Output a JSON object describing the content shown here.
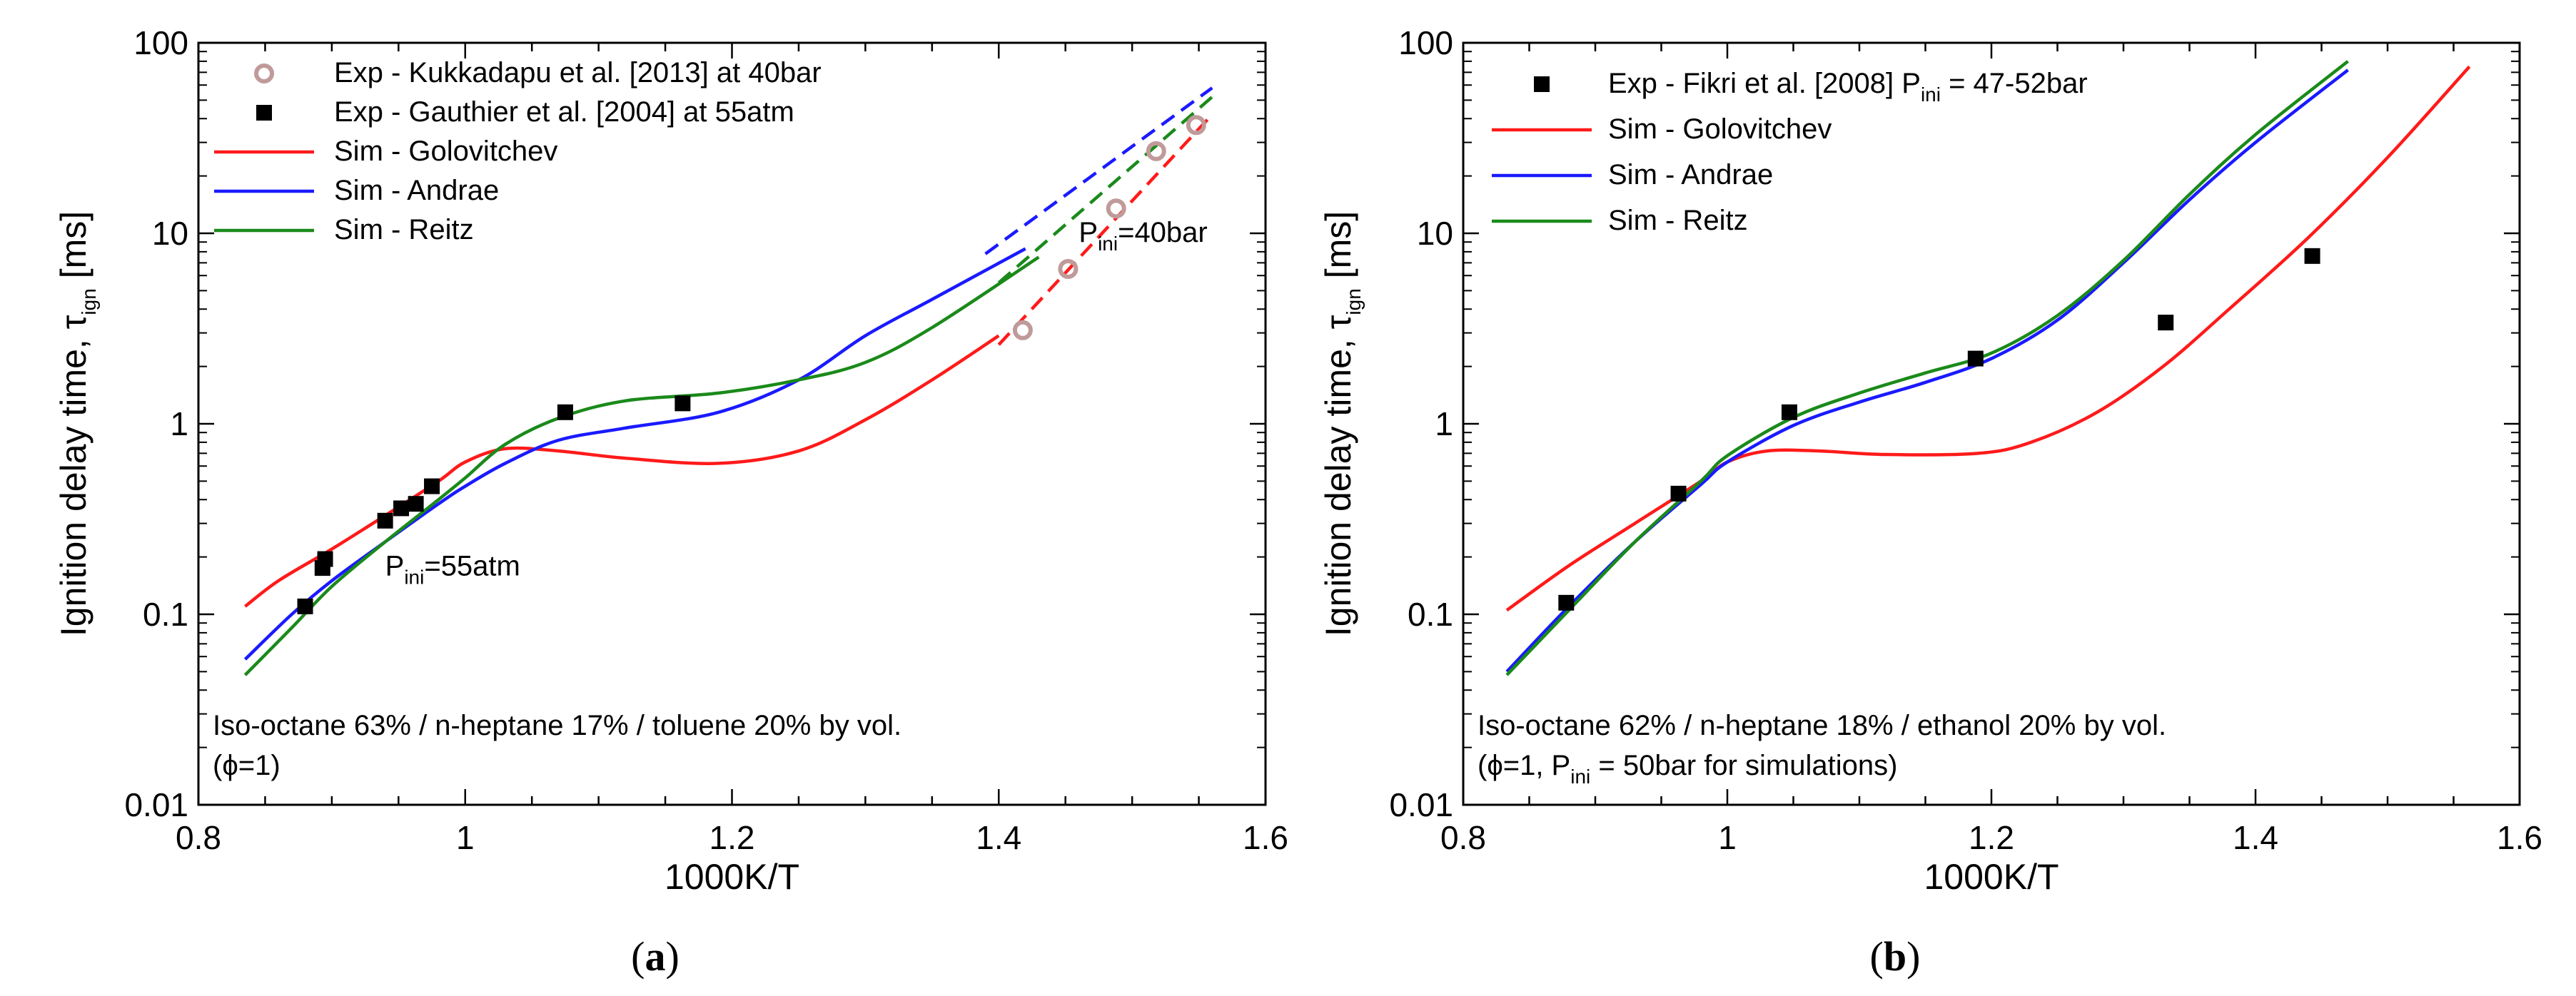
{
  "chart_data": [
    {
      "type": "line",
      "panel_label": "a",
      "xlabel": "1000K/T",
      "ylabel_main": "Ignition delay time, τ",
      "ylabel_sub": "ign",
      "ylabel_unit": " [ms]",
      "xlim": [
        0.8,
        1.6
      ],
      "ylim": [
        0.01,
        100
      ],
      "yscale": "log",
      "xticks": [
        0.8,
        1,
        1.2,
        1.4,
        1.6
      ],
      "xtick_labels": [
        "0.8",
        "1",
        "1.2",
        "1.4",
        "1.6"
      ],
      "yticks": [
        0.01,
        0.1,
        1,
        10,
        100
      ],
      "ytick_labels": [
        "0.01",
        "0.1",
        "1",
        "10",
        "100"
      ],
      "legend": {
        "position": "top-left",
        "entries": [
          {
            "label": "Exp - Kukkadapu et al. [2013] at 40bar",
            "marker": "open-circle",
            "color": "#c09a9a"
          },
          {
            "label": "Exp - Gauthier et al. [2004] at 55atm",
            "marker": "square",
            "color": "#000000"
          },
          {
            "label": "Sim - Golovitchev",
            "line": "solid",
            "color": "#ff1a1a"
          },
          {
            "label": "Sim - Andrae",
            "line": "solid",
            "color": "#1a1aff"
          },
          {
            "label": "Sim - Reitz",
            "line": "solid",
            "color": "#1a8a1a"
          }
        ]
      },
      "annotations": [
        {
          "main": "P",
          "sub": "ini",
          "rest": "=55atm",
          "x": 0.94,
          "y": 0.16
        },
        {
          "main": "P",
          "sub": "ini",
          "rest": "=40bar",
          "x": 1.46,
          "y": 9.0
        }
      ],
      "description_lines": [
        "Iso-octane 63% / n-heptane 17% / toluene 20% by vol.",
        "(ϕ=1)"
      ],
      "series": [
        {
          "name": "Sim - Golovitchev",
          "style": "solid",
          "color": "#ff1a1a",
          "x": [
            0.835,
            0.86,
            0.9,
            0.94,
            0.98,
            1.0,
            1.03,
            1.07,
            1.12,
            1.19,
            1.25,
            1.3,
            1.35,
            1.4
          ],
          "y": [
            0.11,
            0.15,
            0.22,
            0.33,
            0.5,
            0.63,
            0.74,
            0.72,
            0.66,
            0.62,
            0.72,
            1.05,
            1.7,
            2.9
          ]
        },
        {
          "name": "Sim - Andrae",
          "style": "solid",
          "color": "#1a1aff",
          "x": [
            0.835,
            0.87,
            0.9,
            0.94,
            0.98,
            1.0,
            1.03,
            1.07,
            1.12,
            1.19,
            1.25,
            1.3,
            1.35,
            1.42
          ],
          "y": [
            0.058,
            0.1,
            0.15,
            0.24,
            0.38,
            0.47,
            0.62,
            0.82,
            0.95,
            1.15,
            1.7,
            2.9,
            4.5,
            8.3
          ]
        },
        {
          "name": "Sim - Reitz",
          "style": "solid",
          "color": "#1a8a1a",
          "x": [
            0.835,
            0.87,
            0.9,
            0.94,
            0.98,
            1.0,
            1.03,
            1.07,
            1.12,
            1.19,
            1.25,
            1.3,
            1.35,
            1.43
          ],
          "y": [
            0.048,
            0.085,
            0.14,
            0.24,
            0.4,
            0.52,
            0.78,
            1.07,
            1.32,
            1.45,
            1.7,
            2.1,
            3.2,
            7.5
          ]
        },
        {
          "name": "Sim - Golovitchev (40bar)",
          "style": "dashed",
          "color": "#ff1a1a",
          "x": [
            1.4,
            1.56
          ],
          "y": [
            2.6,
            42
          ]
        },
        {
          "name": "Sim - Andrae (40bar)",
          "style": "dashed",
          "color": "#1a1aff",
          "x": [
            1.39,
            1.56
          ],
          "y": [
            7.8,
            58
          ]
        },
        {
          "name": "Sim - Reitz (40bar)",
          "style": "dashed",
          "color": "#1a8a1a",
          "x": [
            1.4,
            1.56
          ],
          "y": [
            5.5,
            52
          ]
        }
      ],
      "points": [
        {
          "name": "Exp - Gauthier et al. [2004] at 55atm",
          "marker": "square",
          "color": "#000000",
          "x": [
            0.88,
            0.893,
            0.895,
            0.94,
            0.952,
            0.963,
            0.975,
            1.075,
            1.163
          ],
          "y": [
            0.11,
            0.175,
            0.195,
            0.31,
            0.36,
            0.38,
            0.47,
            1.15,
            1.28
          ]
        },
        {
          "name": "Exp - Kukkadapu et al. [2013] at 40bar",
          "marker": "open-circle",
          "color": "#c09a9a",
          "x": [
            1.418,
            1.452,
            1.488,
            1.518,
            1.548
          ],
          "y": [
            3.1,
            6.5,
            13.5,
            27,
            37
          ]
        }
      ]
    },
    {
      "type": "line",
      "panel_label": "b",
      "xlabel": "1000K/T",
      "ylabel_main": "Ignition delay time, τ",
      "ylabel_sub": "ign",
      "ylabel_unit": " [ms]",
      "xlim": [
        0.8,
        1.6
      ],
      "ylim": [
        0.01,
        100
      ],
      "yscale": "log",
      "xticks": [
        0.8,
        1,
        1.2,
        1.4,
        1.6
      ],
      "xtick_labels": [
        "0.8",
        "1",
        "1.2",
        "1.4",
        "1.6"
      ],
      "yticks": [
        0.01,
        0.1,
        1,
        10,
        100
      ],
      "ytick_labels": [
        "0.01",
        "0.1",
        "1",
        "10",
        "100"
      ],
      "legend": {
        "position": "top-left",
        "entries": [
          {
            "label": "Exp - Fikri et al. [2008] P",
            "label_sub": "ini",
            "label_rest": " = 47-52bar",
            "marker": "square",
            "color": "#000000"
          },
          {
            "label": "Sim - Golovitchev",
            "line": "solid",
            "color": "#ff1a1a"
          },
          {
            "label": "Sim - Andrae",
            "line": "solid",
            "color": "#1a1aff"
          },
          {
            "label": "Sim - Reitz",
            "line": "solid",
            "color": "#1a8a1a"
          }
        ]
      },
      "annotations": [],
      "description_lines": [
        "Iso-octane 62% / n-heptane 18% / ethanol 20% by vol."
      ],
      "description_line2": {
        "pre": "(ϕ=1, P",
        "sub": "ini",
        "post": " = 50bar for simulations)"
      },
      "series": [
        {
          "name": "Sim - Golovitchev",
          "style": "solid",
          "color": "#ff1a1a",
          "x": [
            0.833,
            0.88,
            0.93,
            0.98,
            1.0,
            1.03,
            1.07,
            1.12,
            1.19,
            1.23,
            1.28,
            1.33,
            1.38,
            1.44,
            1.5,
            1.562
          ],
          "y": [
            0.105,
            0.18,
            0.3,
            0.5,
            0.63,
            0.72,
            0.72,
            0.69,
            0.7,
            0.8,
            1.15,
            2.0,
            4.0,
            9.5,
            25,
            75
          ]
        },
        {
          "name": "Sim - Andrae",
          "style": "solid",
          "color": "#1a1aff",
          "x": [
            0.833,
            0.88,
            0.93,
            0.98,
            1.0,
            1.05,
            1.1,
            1.15,
            1.2,
            1.25,
            1.3,
            1.35,
            1.4,
            1.47
          ],
          "y": [
            0.05,
            0.11,
            0.24,
            0.48,
            0.63,
            0.98,
            1.3,
            1.65,
            2.2,
            3.5,
            7.0,
            15,
            30,
            72
          ]
        },
        {
          "name": "Sim - Reitz",
          "style": "solid",
          "color": "#1a8a1a",
          "x": [
            0.833,
            0.88,
            0.93,
            0.98,
            1.0,
            1.05,
            1.1,
            1.15,
            1.2,
            1.25,
            1.3,
            1.35,
            1.4,
            1.47
          ],
          "y": [
            0.048,
            0.105,
            0.24,
            0.5,
            0.68,
            1.08,
            1.45,
            1.85,
            2.35,
            3.7,
            7.2,
            16,
            33,
            80
          ]
        }
      ],
      "points": [
        {
          "name": "Exp - Fikri et al. [2008]",
          "marker": "square",
          "color": "#000000",
          "x": [
            0.878,
            0.963,
            1.047,
            1.188,
            1.332,
            1.443
          ],
          "y": [
            0.115,
            0.43,
            1.15,
            2.2,
            3.4,
            7.6
          ]
        }
      ]
    }
  ]
}
